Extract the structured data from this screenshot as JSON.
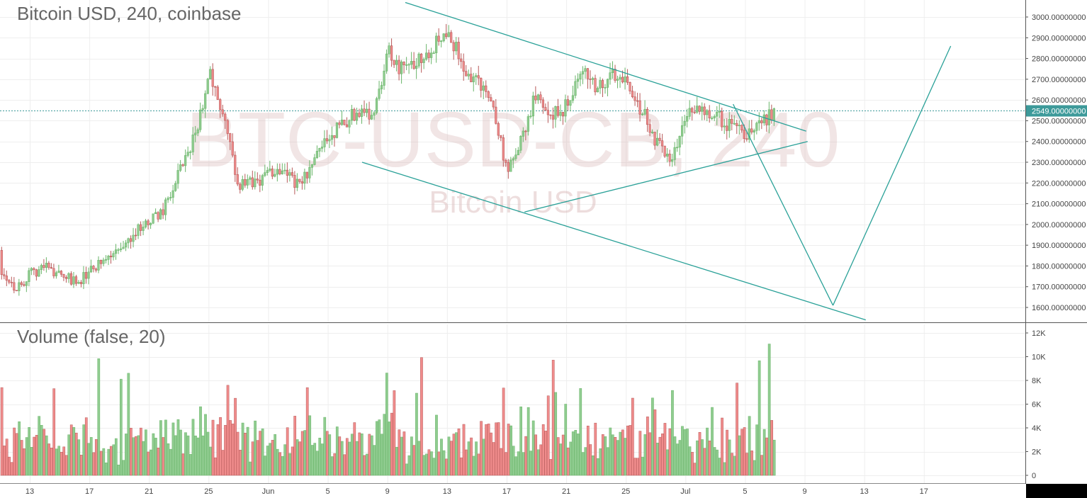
{
  "header": {
    "price_title": "Bitcoin USD, 240, coinbase",
    "volume_title": "Volume (false, 20)"
  },
  "watermark": {
    "symbol": "BTC-USD-CB, 240",
    "name": "Bitcoin USD"
  },
  "colors": {
    "up": "#6ab56a",
    "up_fill": "#90cc90",
    "down": "#b85a5a",
    "down_fill": "#f08c8c",
    "trendline": "#2aa198",
    "grid": "#eeeeee",
    "price_line": "#3d9a9a"
  },
  "last_price_label": "2549.00000000",
  "chart_data": [
    {
      "type": "candlestick",
      "title": "Bitcoin USD, 240, coinbase",
      "x_ticks": [
        "13",
        "17",
        "21",
        "25",
        "Jun",
        "5",
        "9",
        "13",
        "17",
        "21",
        "25",
        "Jul",
        "5",
        "9",
        "13",
        "17"
      ],
      "y_ticks": [
        "3000.00000000",
        "2900.00000000",
        "2800.00000000",
        "2700.00000000",
        "2600.00000000",
        "2500.00000000",
        "2400.00000000",
        "2300.00000000",
        "2200.00000000",
        "2100.00000000",
        "2000.00000000",
        "1900.00000000",
        "1800.00000000",
        "1700.00000000",
        "1600.00000000"
      ],
      "ylim": [
        1540,
        3050
      ],
      "last_price": 2549,
      "anchors": [
        {
          "day": 10,
          "price": 1880
        },
        {
          "day": 11,
          "price": 1790
        },
        {
          "day": 12,
          "price": 1690
        },
        {
          "day": 13,
          "price": 1760
        },
        {
          "day": 14,
          "price": 1800
        },
        {
          "day": 15,
          "price": 1760
        },
        {
          "day": 16,
          "price": 1720
        },
        {
          "day": 17,
          "price": 1770
        },
        {
          "day": 18,
          "price": 1830
        },
        {
          "day": 19,
          "price": 1870
        },
        {
          "day": 20,
          "price": 1970
        },
        {
          "day": 21,
          "price": 2010
        },
        {
          "day": 22,
          "price": 2080
        },
        {
          "day": 23,
          "price": 2250
        },
        {
          "day": 24,
          "price": 2420
        },
        {
          "day": 25,
          "price": 2740
        },
        {
          "day": 26,
          "price": 2480
        },
        {
          "day": 27,
          "price": 2180
        },
        {
          "day": 28,
          "price": 2200
        },
        {
          "day": 29,
          "price": 2250
        },
        {
          "day": 30,
          "price": 2280
        },
        {
          "day": 31,
          "price": 2180
        },
        {
          "day": 32,
          "price": 2300
        },
        {
          "day": 33,
          "price": 2430
        },
        {
          "day": 34,
          "price": 2490
        },
        {
          "day": 35,
          "price": 2550
        },
        {
          "day": 36,
          "price": 2540
        },
        {
          "day": 37,
          "price": 2840
        },
        {
          "day": 38,
          "price": 2730
        },
        {
          "day": 39,
          "price": 2810
        },
        {
          "day": 40,
          "price": 2860
        },
        {
          "day": 41,
          "price": 2960
        },
        {
          "day": 42,
          "price": 2740
        },
        {
          "day": 43,
          "price": 2700
        },
        {
          "day": 44,
          "price": 2580
        },
        {
          "day": 45,
          "price": 2240
        },
        {
          "day": 46,
          "price": 2420
        },
        {
          "day": 47,
          "price": 2650
        },
        {
          "day": 48,
          "price": 2520
        },
        {
          "day": 49,
          "price": 2570
        },
        {
          "day": 50,
          "price": 2740
        },
        {
          "day": 51,
          "price": 2660
        },
        {
          "day": 52,
          "price": 2720
        },
        {
          "day": 53,
          "price": 2700
        },
        {
          "day": 54,
          "price": 2550
        },
        {
          "day": 55,
          "price": 2400
        },
        {
          "day": 56,
          "price": 2280
        },
        {
          "day": 57,
          "price": 2550
        },
        {
          "day": 58,
          "price": 2560
        },
        {
          "day": 59,
          "price": 2520
        },
        {
          "day": 60,
          "price": 2470
        },
        {
          "day": 61,
          "price": 2440
        },
        {
          "day": 62,
          "price": 2480
        },
        {
          "day": 63,
          "price": 2549
        }
      ],
      "trendlines": [
        {
          "name": "upper-descending-line",
          "points": [
            {
              "day": 38.2,
              "price": 3070
            },
            {
              "day": 65.1,
              "price": 2450
            }
          ]
        },
        {
          "name": "lower-ascending-line",
          "points": [
            {
              "day": 46.2,
              "price": 2060
            },
            {
              "day": 65.2,
              "price": 2400
            }
          ]
        },
        {
          "name": "lower-channel-line",
          "points": [
            {
              "day": 35.3,
              "price": 2300
            },
            {
              "day": 69.1,
              "price": 1540
            }
          ]
        },
        {
          "name": "projection-down-line",
          "points": [
            {
              "day": 60.2,
              "price": 2580
            },
            {
              "day": 66.9,
              "price": 1610
            }
          ]
        },
        {
          "name": "projection-up-line",
          "points": [
            {
              "day": 66.9,
              "price": 1610
            },
            {
              "day": 74.8,
              "price": 2860
            }
          ]
        }
      ]
    },
    {
      "type": "bar",
      "title": "Volume (false, 20)",
      "y_ticks": [
        "12K",
        "10K",
        "8K",
        "6K",
        "4K",
        "2K",
        "0"
      ],
      "ylim": [
        0,
        12000
      ]
    }
  ]
}
